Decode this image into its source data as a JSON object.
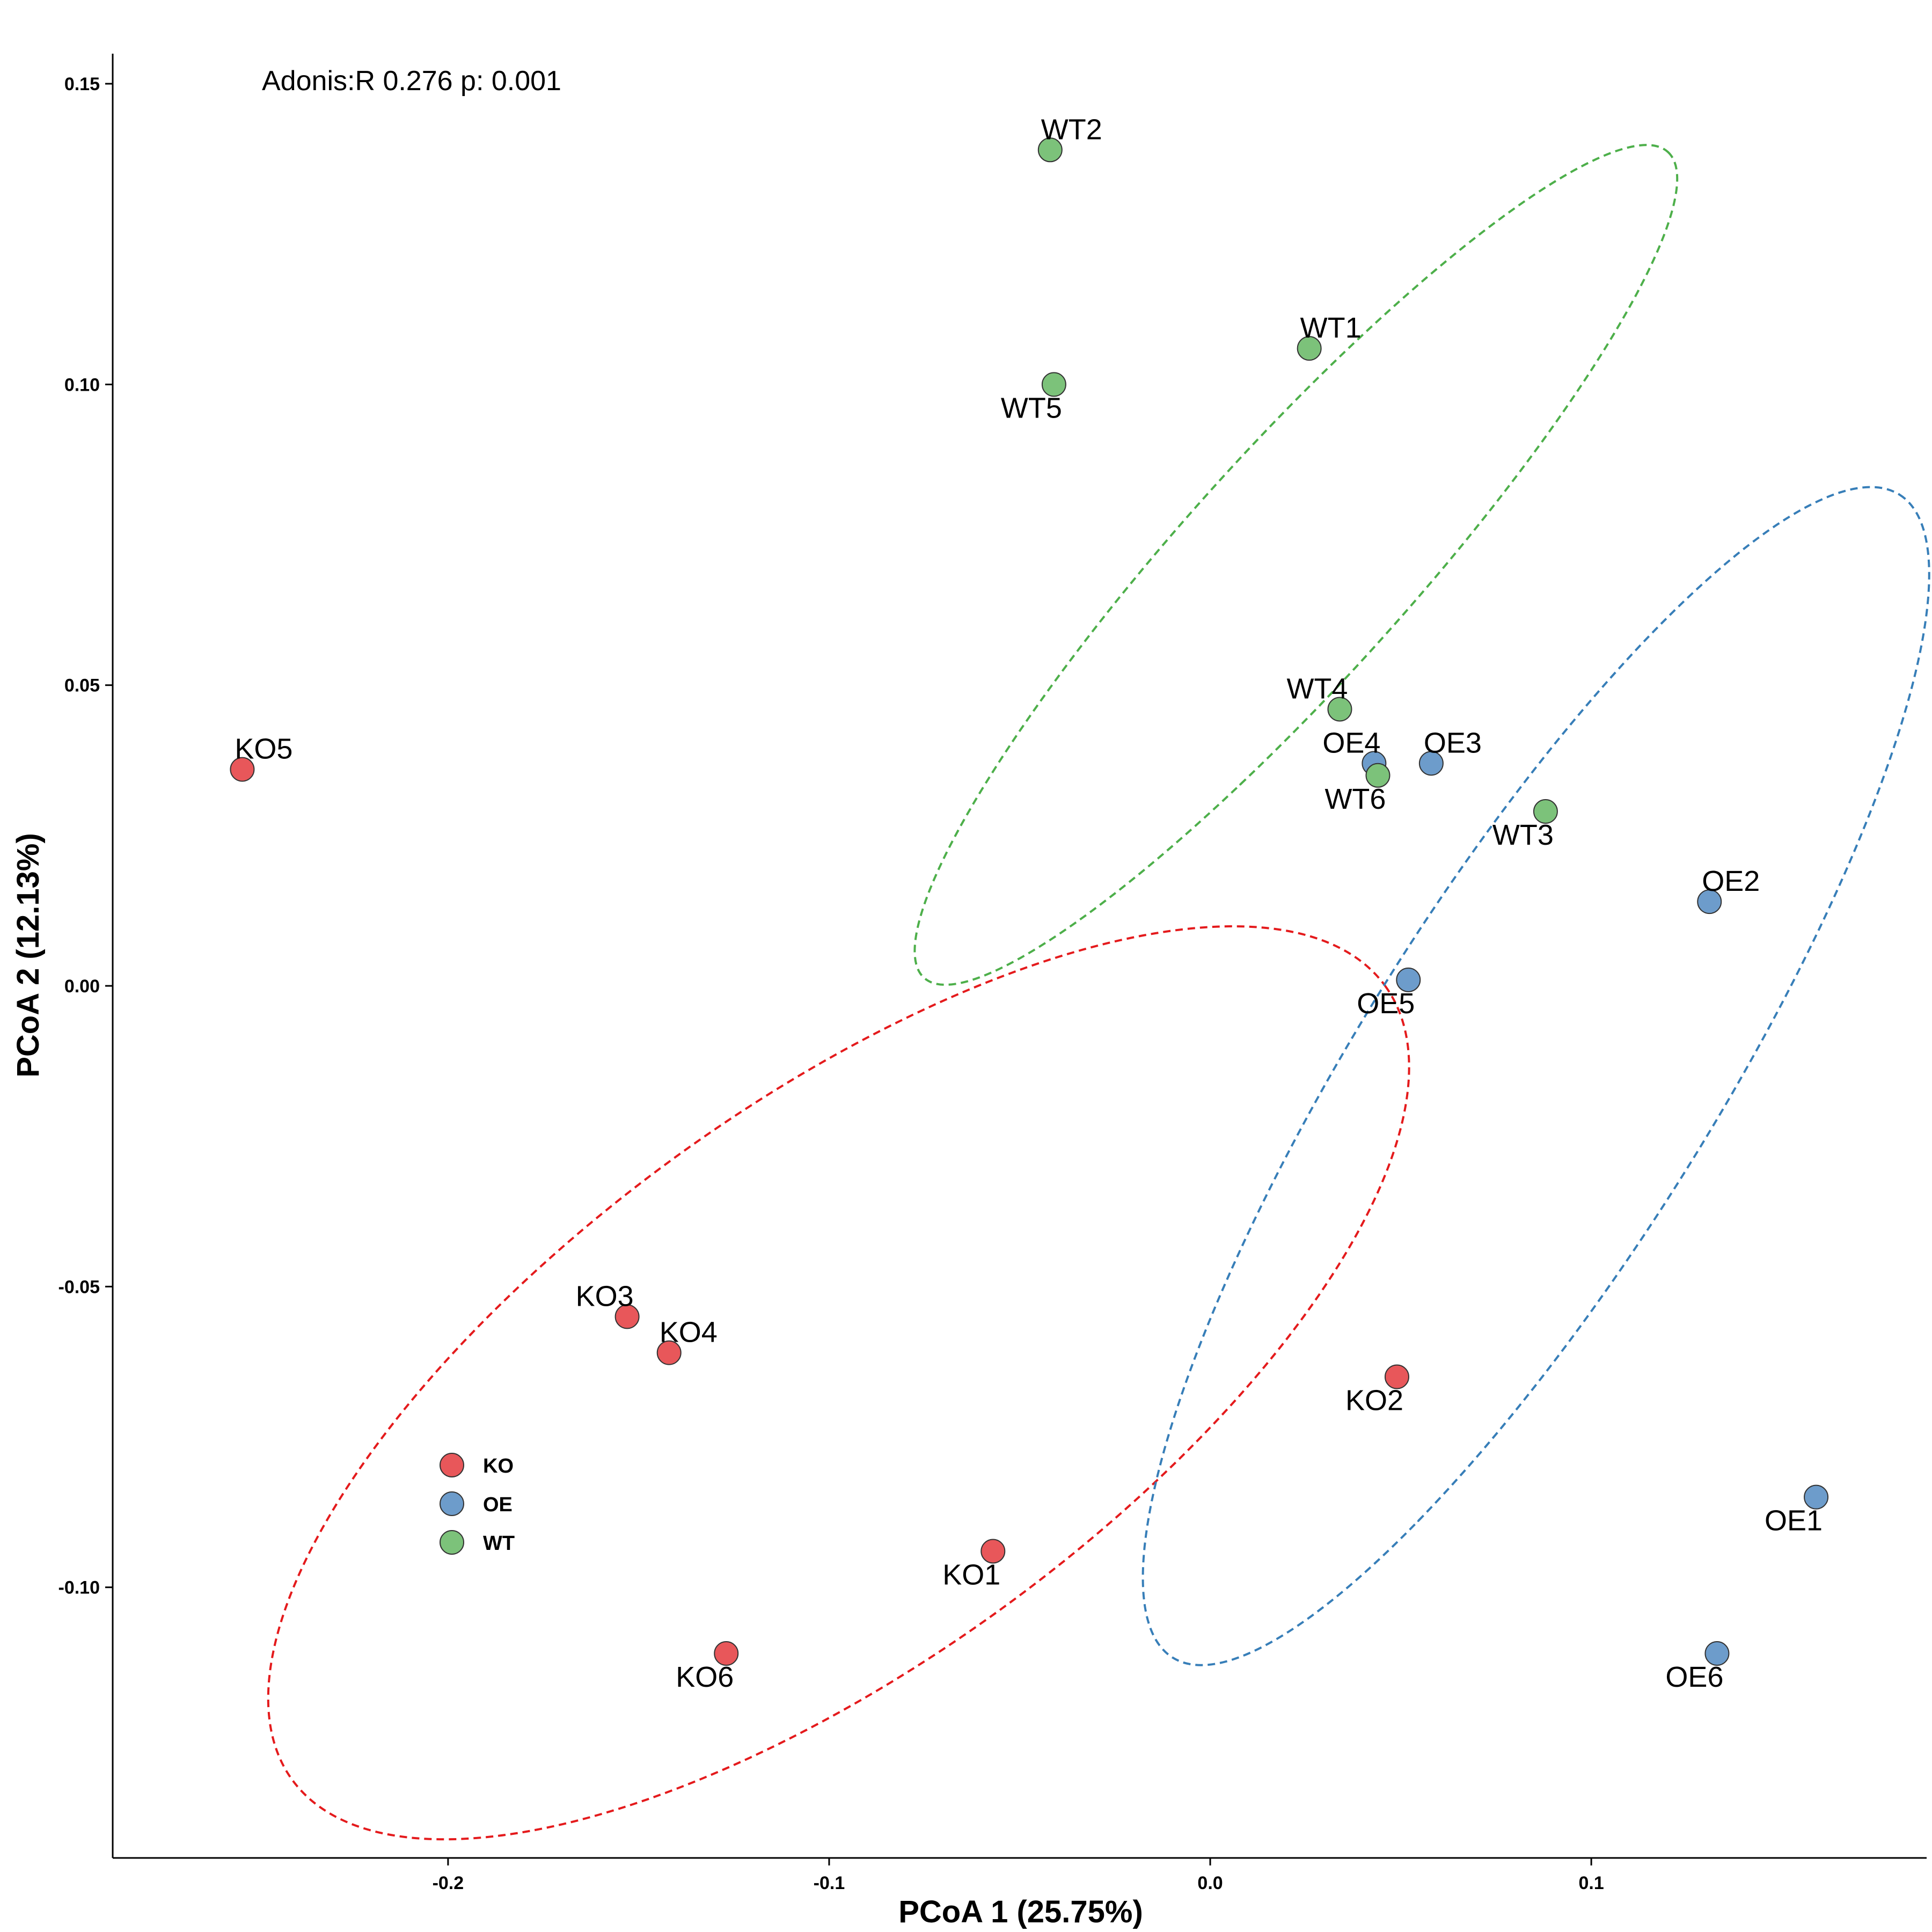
{
  "chart_data": {
    "type": "scatter",
    "xlabel": "PCoA 1 (25.75%)",
    "ylabel": "PCoA 2 (12.13%)",
    "annotation": "Adonis:R 0.276 p: 0.001",
    "xlim": [
      -0.288,
      0.188
    ],
    "ylim": [
      -0.145,
      0.155
    ],
    "xticks": [
      -0.2,
      -0.1,
      0.0,
      0.1
    ],
    "xtick_labels": [
      "-0.2",
      "-0.1",
      "0.0",
      "0.1"
    ],
    "yticks": [
      -0.1,
      -0.05,
      0.0,
      0.05,
      0.1,
      0.15
    ],
    "ytick_labels": [
      "-0.10",
      "-0.05",
      "0.00",
      "0.05",
      "0.10",
      "0.15"
    ],
    "grid": false,
    "legend_placement": "bottom-left",
    "series": [
      {
        "name": "KO",
        "color": "#E41A1C",
        "points": [
          {
            "label": "KO1",
            "x": -0.057,
            "y": -0.094
          },
          {
            "label": "KO2",
            "x": 0.049,
            "y": -0.065
          },
          {
            "label": "KO3",
            "x": -0.153,
            "y": -0.055
          },
          {
            "label": "KO4",
            "x": -0.142,
            "y": -0.061
          },
          {
            "label": "KO5",
            "x": -0.254,
            "y": 0.036
          },
          {
            "label": "KO6",
            "x": -0.127,
            "y": -0.111
          }
        ],
        "ellipse": {
          "cx": -0.0975,
          "cy": -0.066,
          "rx": 0.144,
          "ry": 0.052,
          "angle_deg": -36
        }
      },
      {
        "name": "OE",
        "color": "#377EB8",
        "points": [
          {
            "label": "OE1",
            "x": 0.159,
            "y": -0.085
          },
          {
            "label": "OE2",
            "x": 0.131,
            "y": 0.014
          },
          {
            "label": "OE3",
            "x": 0.058,
            "y": 0.037
          },
          {
            "label": "OE4",
            "x": 0.043,
            "y": 0.037
          },
          {
            "label": "OE5",
            "x": 0.052,
            "y": 0.001
          },
          {
            "label": "OE6",
            "x": 0.133,
            "y": -0.111
          }
        ],
        "ellipse": {
          "cx": 0.0855,
          "cy": -0.015,
          "rx": 0.125,
          "ry": 0.039,
          "angle_deg": -58
        }
      },
      {
        "name": "WT",
        "color": "#4DAF4A",
        "points": [
          {
            "label": "WT1",
            "x": 0.026,
            "y": 0.106
          },
          {
            "label": "WT2",
            "x": -0.042,
            "y": 0.139
          },
          {
            "label": "WT3",
            "x": 0.088,
            "y": 0.029
          },
          {
            "label": "WT4",
            "x": 0.034,
            "y": 0.046
          },
          {
            "label": "WT5",
            "x": -0.041,
            "y": 0.1
          },
          {
            "label": "WT6",
            "x": 0.044,
            "y": 0.035
          }
        ],
        "ellipse": {
          "cx": 0.0225,
          "cy": 0.07,
          "rx": 0.108,
          "ry": 0.023,
          "angle_deg": -48
        }
      }
    ]
  }
}
